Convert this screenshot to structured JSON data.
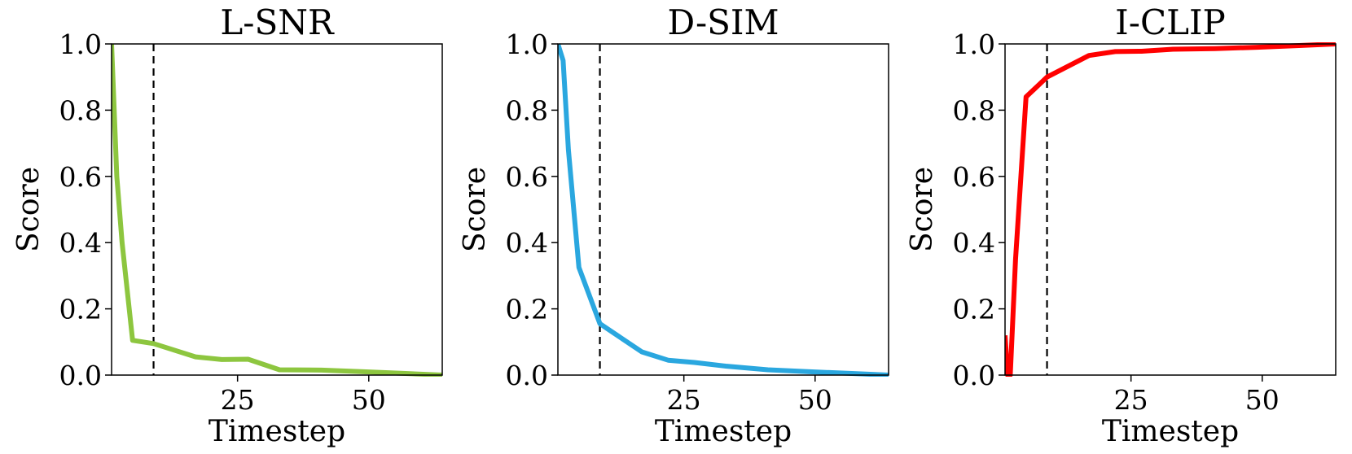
{
  "chart_data": [
    {
      "type": "line",
      "title": "L-SNR",
      "xlabel": "Timestep",
      "ylabel": "Score",
      "xlim": [
        1,
        64
      ],
      "ylim": [
        0,
        1
      ],
      "xticks": [
        25,
        50
      ],
      "yticks": [
        "0.0",
        "0.2",
        "0.4",
        "0.6",
        "0.8",
        "1.0"
      ],
      "vline_x": 9,
      "color": "#8dc63f",
      "series": [
        {
          "x": [
            1,
            2,
            3,
            5,
            9,
            17,
            22,
            27,
            33,
            41,
            49,
            57,
            64
          ],
          "y": [
            1.0,
            0.6,
            0.4,
            0.105,
            0.095,
            0.055,
            0.047,
            0.048,
            0.016,
            0.015,
            0.01,
            0.005,
            0.0
          ]
        }
      ],
      "grid": false
    },
    {
      "type": "line",
      "title": "D-SIM",
      "xlabel": "Timestep",
      "ylabel": "Score",
      "xlim": [
        1,
        64
      ],
      "ylim": [
        0,
        1
      ],
      "xticks": [
        25,
        50
      ],
      "yticks": [
        "0.0",
        "0.2",
        "0.4",
        "0.6",
        "0.8",
        "1.0"
      ],
      "vline_x": 9,
      "color": "#2aa7df",
      "series": [
        {
          "x": [
            1,
            2,
            3,
            5,
            9,
            17,
            22,
            27,
            33,
            41,
            49,
            57,
            64
          ],
          "y": [
            1.0,
            0.95,
            0.68,
            0.325,
            0.155,
            0.07,
            0.045,
            0.038,
            0.027,
            0.016,
            0.01,
            0.005,
            0.0
          ]
        }
      ],
      "grid": false
    },
    {
      "type": "line",
      "title": "I-CLIP",
      "xlabel": "Timestep",
      "ylabel": "Score",
      "xlim": [
        1,
        64
      ],
      "ylim": [
        0,
        1
      ],
      "xticks": [
        25,
        50
      ],
      "yticks": [
        "0.0",
        "0.2",
        "0.4",
        "0.6",
        "0.8",
        "1.0"
      ],
      "vline_x": 9,
      "color": "#ff0000",
      "series": [
        {
          "x": [
            1,
            1.5,
            2,
            3,
            5,
            9,
            17,
            22,
            27,
            33,
            41,
            49,
            57,
            64
          ],
          "y": [
            0.12,
            0.0,
            0.0,
            0.35,
            0.84,
            0.9,
            0.965,
            0.977,
            0.978,
            0.984,
            0.986,
            0.99,
            0.995,
            1.0
          ]
        }
      ],
      "grid": false
    }
  ]
}
